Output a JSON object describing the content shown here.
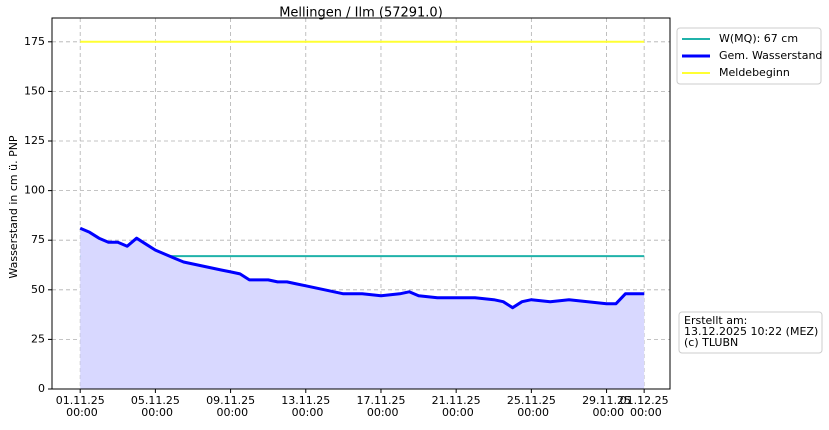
{
  "chart_data": {
    "type": "line",
    "title": "Mellingen / Ilm (57291.0)",
    "y_label": "Wasserstand in cm ü. PNP",
    "x": [
      "01.11.25 00:00",
      "01.11.25 12:00",
      "02.11.25 00:00",
      "02.11.25 12:00",
      "03.11.25 00:00",
      "03.11.25 12:00",
      "04.11.25 00:00",
      "04.11.25 12:00",
      "05.11.25 00:00",
      "05.11.25 12:00",
      "06.11.25 00:00",
      "06.11.25 12:00",
      "07.11.25 00:00",
      "07.11.25 12:00",
      "08.11.25 00:00",
      "08.11.25 12:00",
      "09.11.25 00:00",
      "09.11.25 12:00",
      "10.11.25 00:00",
      "10.11.25 12:00",
      "11.11.25 00:00",
      "11.11.25 12:00",
      "12.11.25 00:00",
      "12.11.25 12:00",
      "13.11.25 00:00",
      "13.11.25 12:00",
      "14.11.25 00:00",
      "14.11.25 12:00",
      "15.11.25 00:00",
      "16.11.25 00:00",
      "17.11.25 00:00",
      "18.11.25 00:00",
      "18.11.25 12:00",
      "19.11.25 00:00",
      "20.11.25 00:00",
      "21.11.25 00:00",
      "22.11.25 00:00",
      "23.11.25 00:00",
      "23.11.25 12:00",
      "24.11.25 00:00",
      "24.11.25 12:00",
      "25.11.25 00:00",
      "26.11.25 00:00",
      "27.11.25 00:00",
      "28.11.25 00:00",
      "29.11.25 00:00",
      "29.11.25 12:00",
      "30.11.25 00:00",
      "01.12.25 00:00"
    ],
    "series": [
      {
        "name": "W(MQ): 67 cm",
        "color": "#20b2aa",
        "x": [
          "01.11.25 00:00",
          "01.12.25 00:00"
        ],
        "values": [
          67,
          67
        ]
      },
      {
        "name": "Gem. Wasserstand",
        "color": "#0000ff",
        "fill": "#d8d8ff",
        "values": [
          81,
          79,
          76,
          74,
          74,
          72,
          76,
          73,
          70,
          68,
          66,
          64,
          63,
          62,
          61,
          60,
          59,
          58,
          55,
          55,
          55,
          54,
          54,
          53,
          52,
          51,
          50,
          49,
          48,
          48,
          47,
          48,
          49,
          47,
          46,
          46,
          46,
          45,
          44,
          41,
          44,
          45,
          44,
          45,
          44,
          43,
          43,
          48,
          48
        ]
      },
      {
        "name": "Meldebeginn",
        "color": "#ffff33",
        "x": [
          "01.11.25 00:00",
          "01.12.25 00:00"
        ],
        "values": [
          175,
          175
        ]
      }
    ],
    "xlim": [
      "30.10.25 12:00",
      "02.12.25 09:00"
    ],
    "xticks": [
      "01.11.25 00:00",
      "05.11.25 00:00",
      "09.11.25 00:00",
      "13.11.25 00:00",
      "17.11.25 00:00",
      "21.11.25 00:00",
      "25.11.25 00:00",
      "29.11.25 00:00",
      "01.12.25 00:00"
    ],
    "ylim": [
      0,
      187
    ],
    "yticks": [
      0,
      25,
      50,
      75,
      100,
      125,
      150,
      175
    ],
    "grid": true,
    "legend": "outside upper right",
    "annotation": [
      "Erstellt am:",
      "13.12.2025 10:22 (MEZ)",
      "(c) TLUBN"
    ]
  }
}
